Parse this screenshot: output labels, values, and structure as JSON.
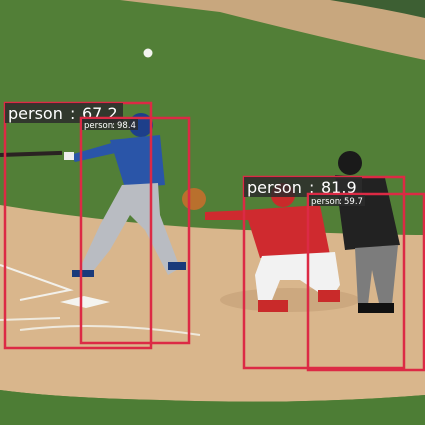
{
  "detections": [
    {
      "label": "person",
      "score": "67.2",
      "color": "#dc2a45"
    },
    {
      "label": "person",
      "score": "98.4",
      "color": "#dc2a45"
    },
    {
      "label": "person",
      "score": "81.9",
      "color": "#dc2a45"
    },
    {
      "label": "person",
      "score": "59.7",
      "color": "#dc2a45"
    }
  ],
  "colors": {
    "grass": "#4f7f36",
    "dirt": "#d8b48a",
    "uniform_blue": "#274fa0",
    "uniform_red": "#cf2a2f"
  }
}
